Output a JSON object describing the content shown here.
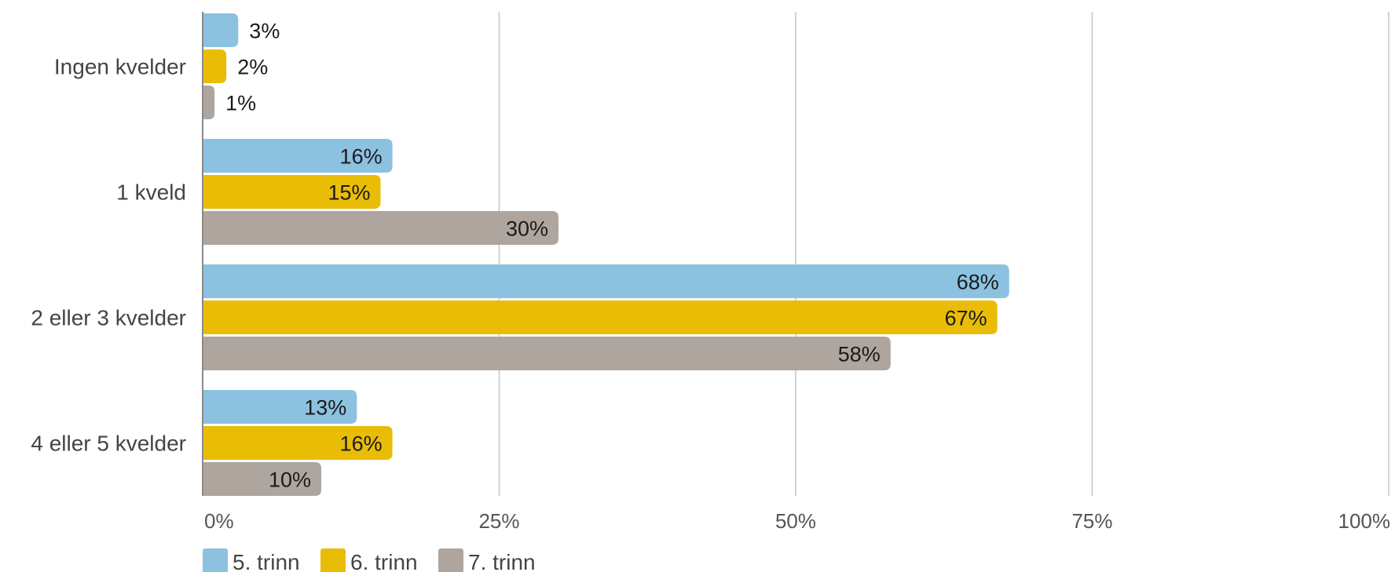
{
  "chart_data": {
    "type": "bar",
    "orientation": "horizontal",
    "categories": [
      "Ingen kvelder",
      "1 kveld",
      "2 eller 3 kvelder",
      "4 eller 5 kvelder"
    ],
    "series": [
      {
        "name": "5. trinn",
        "color": "#8cc1e0",
        "values": [
          3,
          16,
          68,
          13
        ],
        "labels": [
          "3%",
          "16%",
          "68%",
          "13%"
        ]
      },
      {
        "name": "6. trinn",
        "color": "#e9bd06",
        "values": [
          2,
          15,
          67,
          16
        ],
        "labels": [
          "2%",
          "15%",
          "67%",
          "16%"
        ]
      },
      {
        "name": "7. trinn",
        "color": "#aea59e",
        "values": [
          1,
          30,
          58,
          10
        ],
        "labels": [
          "1%",
          "30%",
          "58%",
          "10%"
        ]
      }
    ],
    "xlim": [
      0,
      100
    ],
    "xticks": [
      0,
      25,
      50,
      75,
      100
    ],
    "xtick_labels": [
      "0%",
      "25%",
      "50%",
      "75%",
      "100%"
    ],
    "grid": "vertical",
    "legend": "bottom-left",
    "title": "",
    "xlabel": "",
    "ylabel": ""
  }
}
